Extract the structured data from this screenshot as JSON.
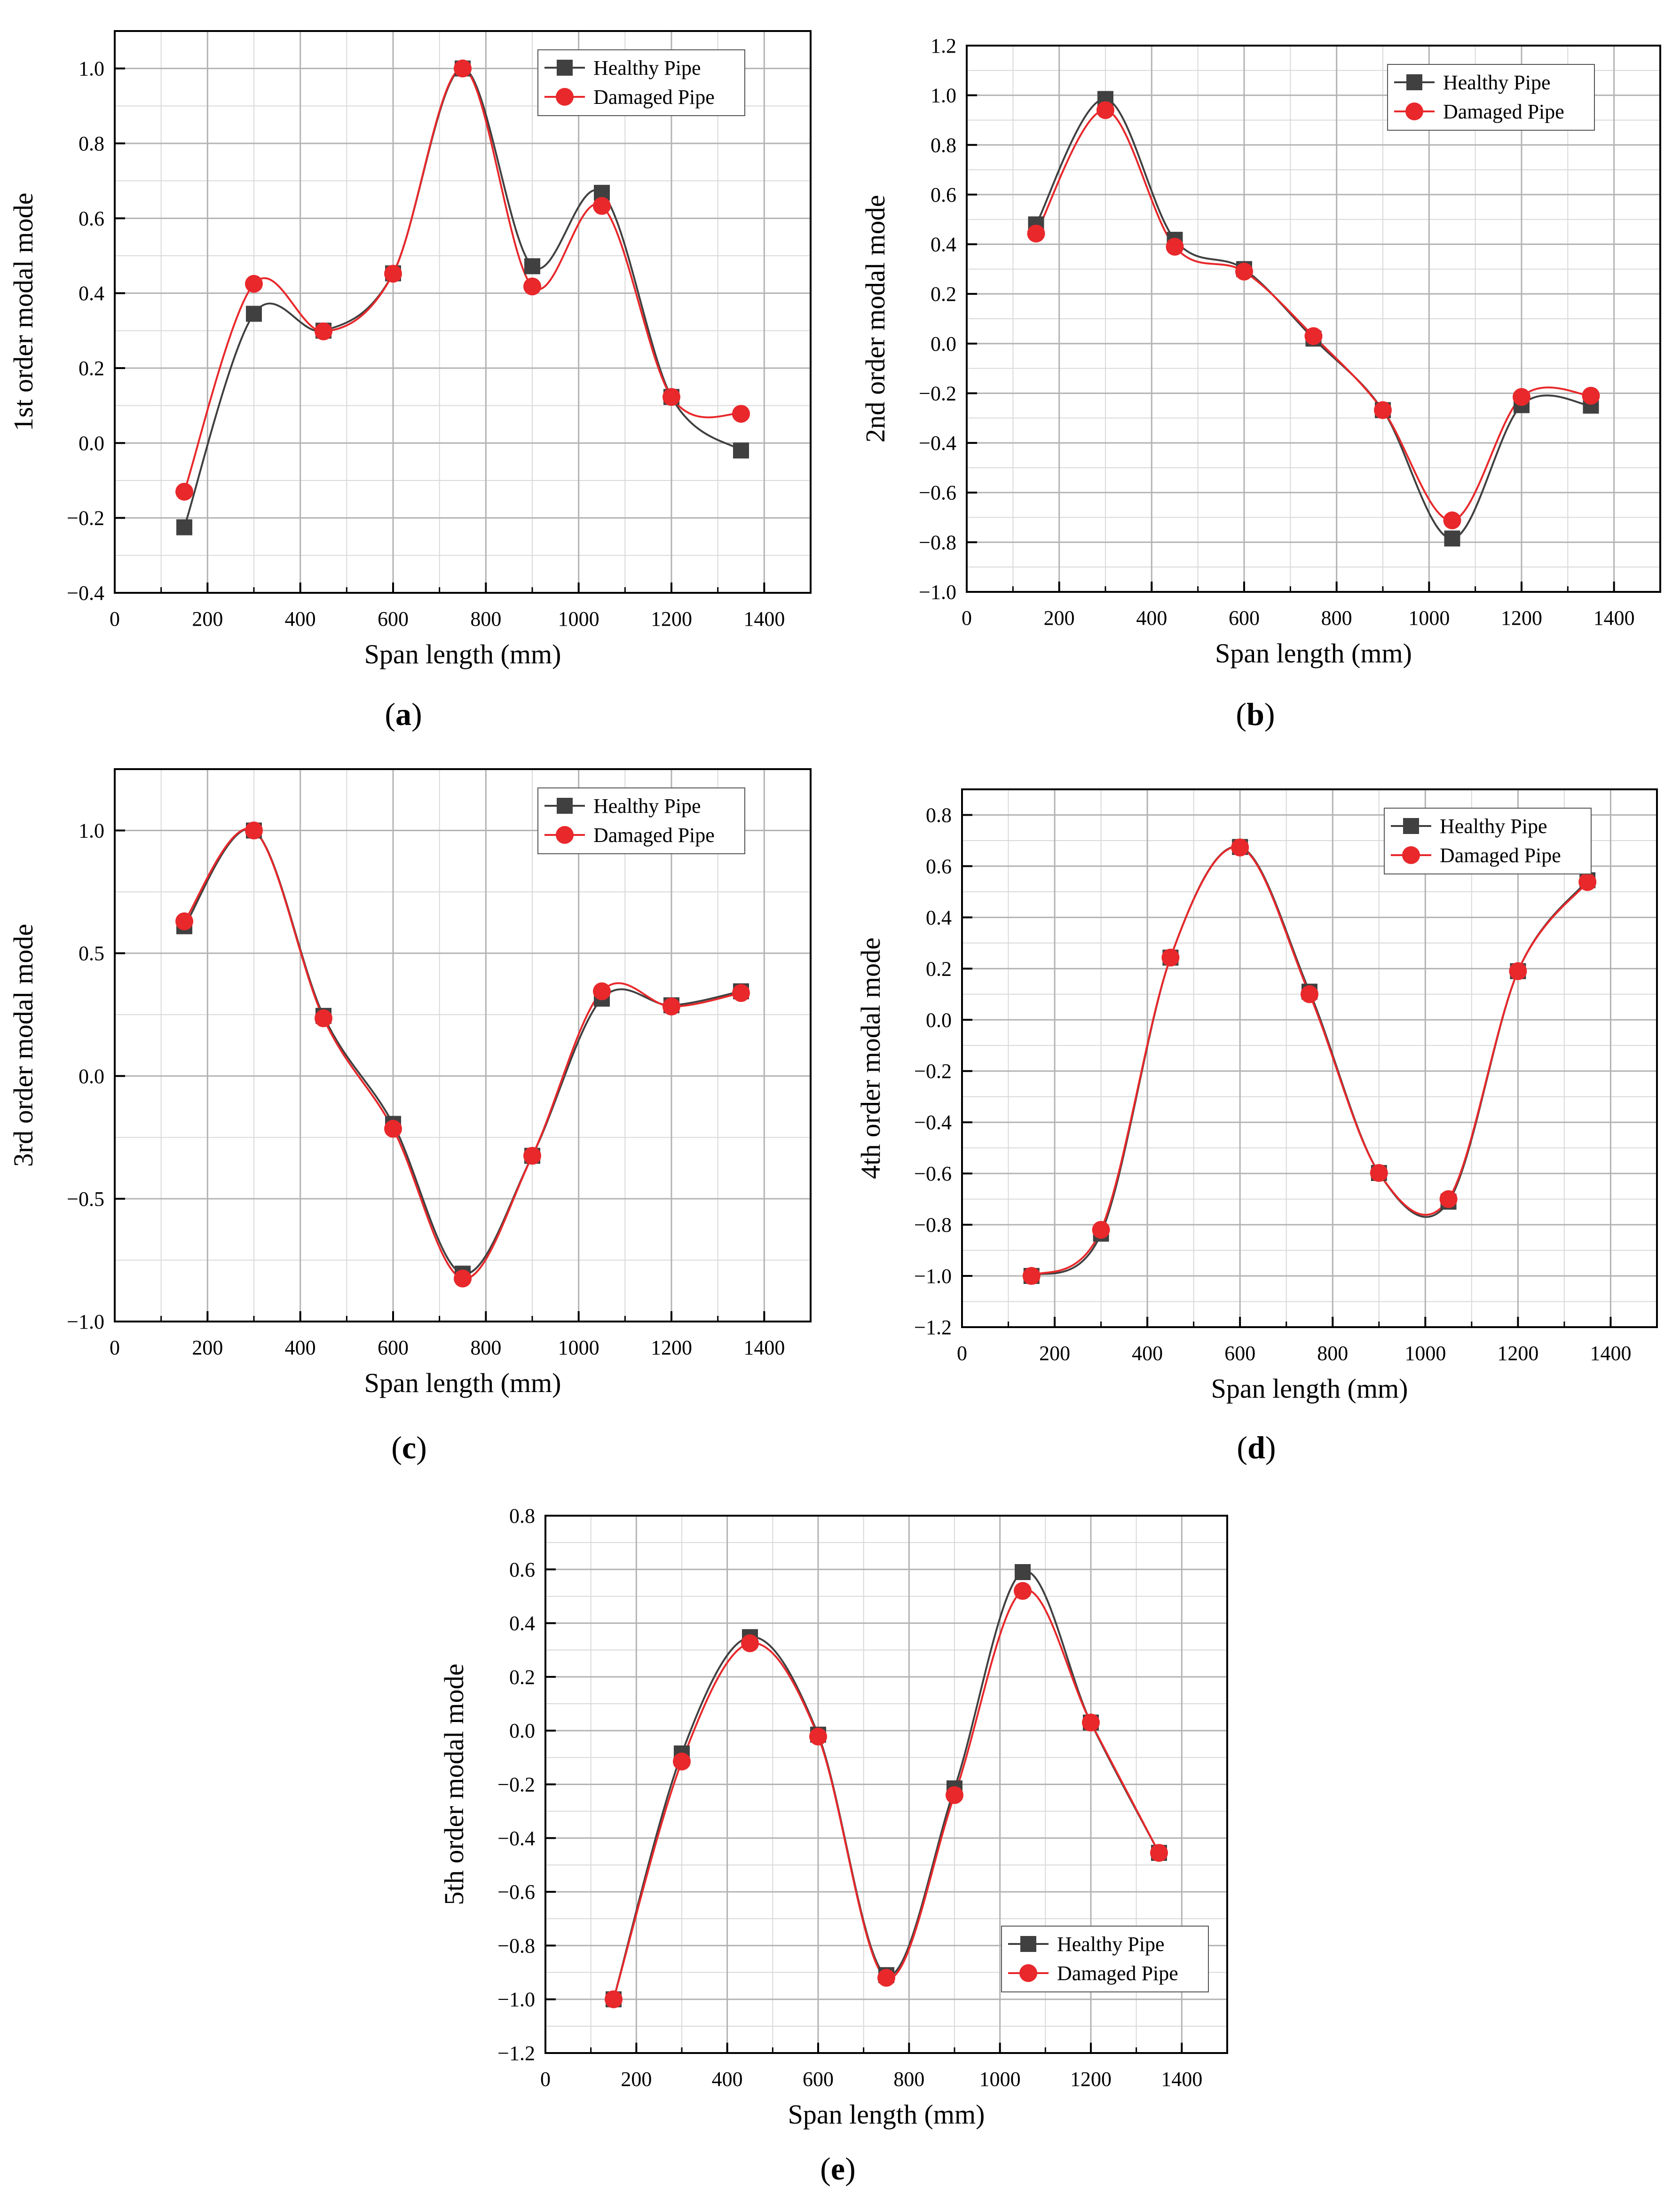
{
  "colors": {
    "healthy": "#404040",
    "damaged": "#e8282b",
    "grid_major": "#b3b3b3",
    "grid_minor": "#d9d9d9",
    "axis": "#000000"
  },
  "chart_data": [
    {
      "type": "line",
      "panel": "a",
      "panel_label": "a",
      "title": "",
      "xlabel": "Span length (mm)",
      "ylabel": "1st order modal mode",
      "xlim": [
        0,
        1500
      ],
      "ylim": [
        -0.4,
        1.1
      ],
      "xticks": [
        0,
        200,
        400,
        600,
        800,
        1000,
        1200,
        1400
      ],
      "yticks": [
        -0.4,
        -0.2,
        0.0,
        0.2,
        0.4,
        0.6,
        0.8,
        1.0
      ],
      "ytick_labels": [
        "−0.4",
        "−0.2",
        "0.0",
        "0.2",
        "0.4",
        "0.6",
        "0.8",
        "1.0"
      ],
      "grid": true,
      "legend_position": "top-right",
      "x": [
        150,
        300,
        450,
        600,
        750,
        900,
        1050,
        1200,
        1350
      ],
      "series": [
        {
          "name": "Healthy Pipe",
          "marker": "square",
          "values": [
            -0.225,
            0.345,
            0.3,
            0.453,
            1.0,
            0.472,
            0.668,
            0.123,
            -0.02
          ]
        },
        {
          "name": "Damaged Pipe",
          "marker": "circle",
          "values": [
            -0.13,
            0.425,
            0.298,
            0.452,
            1.0,
            0.418,
            0.633,
            0.123,
            0.078
          ]
        }
      ]
    },
    {
      "type": "line",
      "panel": "b",
      "panel_label": "b",
      "title": "",
      "xlabel": "Span length (mm)",
      "ylabel": "2nd order modal mode",
      "xlim": [
        0,
        1500
      ],
      "ylim": [
        -1.0,
        1.2
      ],
      "xticks": [
        0,
        200,
        400,
        600,
        800,
        1000,
        1200,
        1400
      ],
      "yticks": [
        -1.0,
        -0.8,
        -0.6,
        -0.4,
        -0.2,
        0.0,
        0.2,
        0.4,
        0.6,
        0.8,
        1.0,
        1.2
      ],
      "ytick_labels": [
        "−1.0",
        "−0.8",
        "−0.6",
        "−0.4",
        "−0.2",
        "0.0",
        "0.2",
        "0.4",
        "0.6",
        "0.8",
        "1.0",
        "1.2"
      ],
      "grid": true,
      "legend_position": "top-right",
      "x": [
        150,
        300,
        450,
        600,
        750,
        900,
        1050,
        1200,
        1350
      ],
      "series": [
        {
          "name": "Healthy Pipe",
          "marker": "square",
          "values": [
            0.48,
            0.985,
            0.418,
            0.3,
            0.02,
            -0.268,
            -0.785,
            -0.248,
            -0.25
          ]
        },
        {
          "name": "Damaged Pipe",
          "marker": "circle",
          "values": [
            0.443,
            0.94,
            0.39,
            0.29,
            0.03,
            -0.268,
            -0.712,
            -0.215,
            -0.21
          ]
        }
      ]
    },
    {
      "type": "line",
      "panel": "c",
      "panel_label": "c",
      "title": "",
      "xlabel": "Span length (mm)",
      "ylabel": "3rd order modal mode",
      "xlim": [
        0,
        1500
      ],
      "ylim": [
        -1.0,
        1.25
      ],
      "xticks": [
        0,
        200,
        400,
        600,
        800,
        1000,
        1200,
        1400
      ],
      "yticks": [
        -1.0,
        -0.5,
        0.0,
        0.5,
        1.0
      ],
      "ytick_labels": [
        "−1.0",
        "−0.5",
        "0.0",
        "0.5",
        "1.0"
      ],
      "grid": true,
      "legend_position": "top-right",
      "x": [
        150,
        300,
        450,
        600,
        750,
        900,
        1050,
        1200,
        1350
      ],
      "series": [
        {
          "name": "Healthy Pipe",
          "marker": "square",
          "values": [
            0.61,
            1.0,
            0.245,
            -0.195,
            -0.805,
            -0.325,
            0.315,
            0.288,
            0.345
          ]
        },
        {
          "name": "Damaged Pipe",
          "marker": "circle",
          "values": [
            0.63,
            1.0,
            0.235,
            -0.215,
            -0.825,
            -0.325,
            0.345,
            0.283,
            0.338
          ]
        }
      ]
    },
    {
      "type": "line",
      "panel": "d",
      "panel_label": "d",
      "title": "",
      "xlabel": "Span length (mm)",
      "ylabel": "4th order modal mode",
      "xlim": [
        0,
        1500
      ],
      "ylim": [
        -1.2,
        0.9
      ],
      "xticks": [
        0,
        200,
        400,
        600,
        800,
        1000,
        1200,
        1400
      ],
      "yticks": [
        -1.2,
        -1.0,
        -0.8,
        -0.6,
        -0.4,
        -0.2,
        0.0,
        0.2,
        0.4,
        0.6,
        0.8
      ],
      "ytick_labels": [
        "−1.2",
        "−1.0",
        "−0.8",
        "−0.6",
        "−0.4",
        "−0.2",
        "0.0",
        "0.2",
        "0.4",
        "0.6",
        "0.8"
      ],
      "grid": true,
      "legend_position": "top-right",
      "x": [
        150,
        300,
        450,
        600,
        750,
        900,
        1050,
        1200,
        1350
      ],
      "series": [
        {
          "name": "Healthy Pipe",
          "marker": "square",
          "values": [
            -1.0,
            -0.835,
            0.243,
            0.675,
            0.11,
            -0.598,
            -0.71,
            0.19,
            0.545
          ]
        },
        {
          "name": "Damaged Pipe",
          "marker": "circle",
          "values": [
            -1.0,
            -0.82,
            0.243,
            0.673,
            0.1,
            -0.598,
            -0.7,
            0.19,
            0.538
          ]
        }
      ]
    },
    {
      "type": "line",
      "panel": "e",
      "panel_label": "e",
      "title": "",
      "xlabel": "Span length (mm)",
      "ylabel": "5th order modal mode",
      "xlim": [
        0,
        1500
      ],
      "ylim": [
        -1.2,
        0.8
      ],
      "xticks": [
        0,
        200,
        400,
        600,
        800,
        1000,
        1200,
        1400
      ],
      "yticks": [
        -1.2,
        -1.0,
        -0.8,
        -0.6,
        -0.4,
        -0.2,
        0.0,
        0.2,
        0.4,
        0.6,
        0.8
      ],
      "ytick_labels": [
        "−1.2",
        "−1.0",
        "−0.8",
        "−0.6",
        "−0.4",
        "−0.2",
        "0.0",
        "0.2",
        "0.4",
        "0.6",
        "0.8"
      ],
      "grid": true,
      "legend_position": "bottom-right",
      "x": [
        150,
        300,
        450,
        600,
        750,
        900,
        1050,
        1200,
        1350
      ],
      "series": [
        {
          "name": "Healthy Pipe",
          "marker": "square",
          "values": [
            -1.0,
            -0.085,
            0.348,
            -0.015,
            -0.91,
            -0.215,
            0.59,
            0.03,
            -0.455
          ]
        },
        {
          "name": "Damaged Pipe",
          "marker": "circle",
          "values": [
            -1.0,
            -0.115,
            0.325,
            -0.022,
            -0.92,
            -0.24,
            0.52,
            0.03,
            -0.455
          ]
        }
      ]
    }
  ]
}
